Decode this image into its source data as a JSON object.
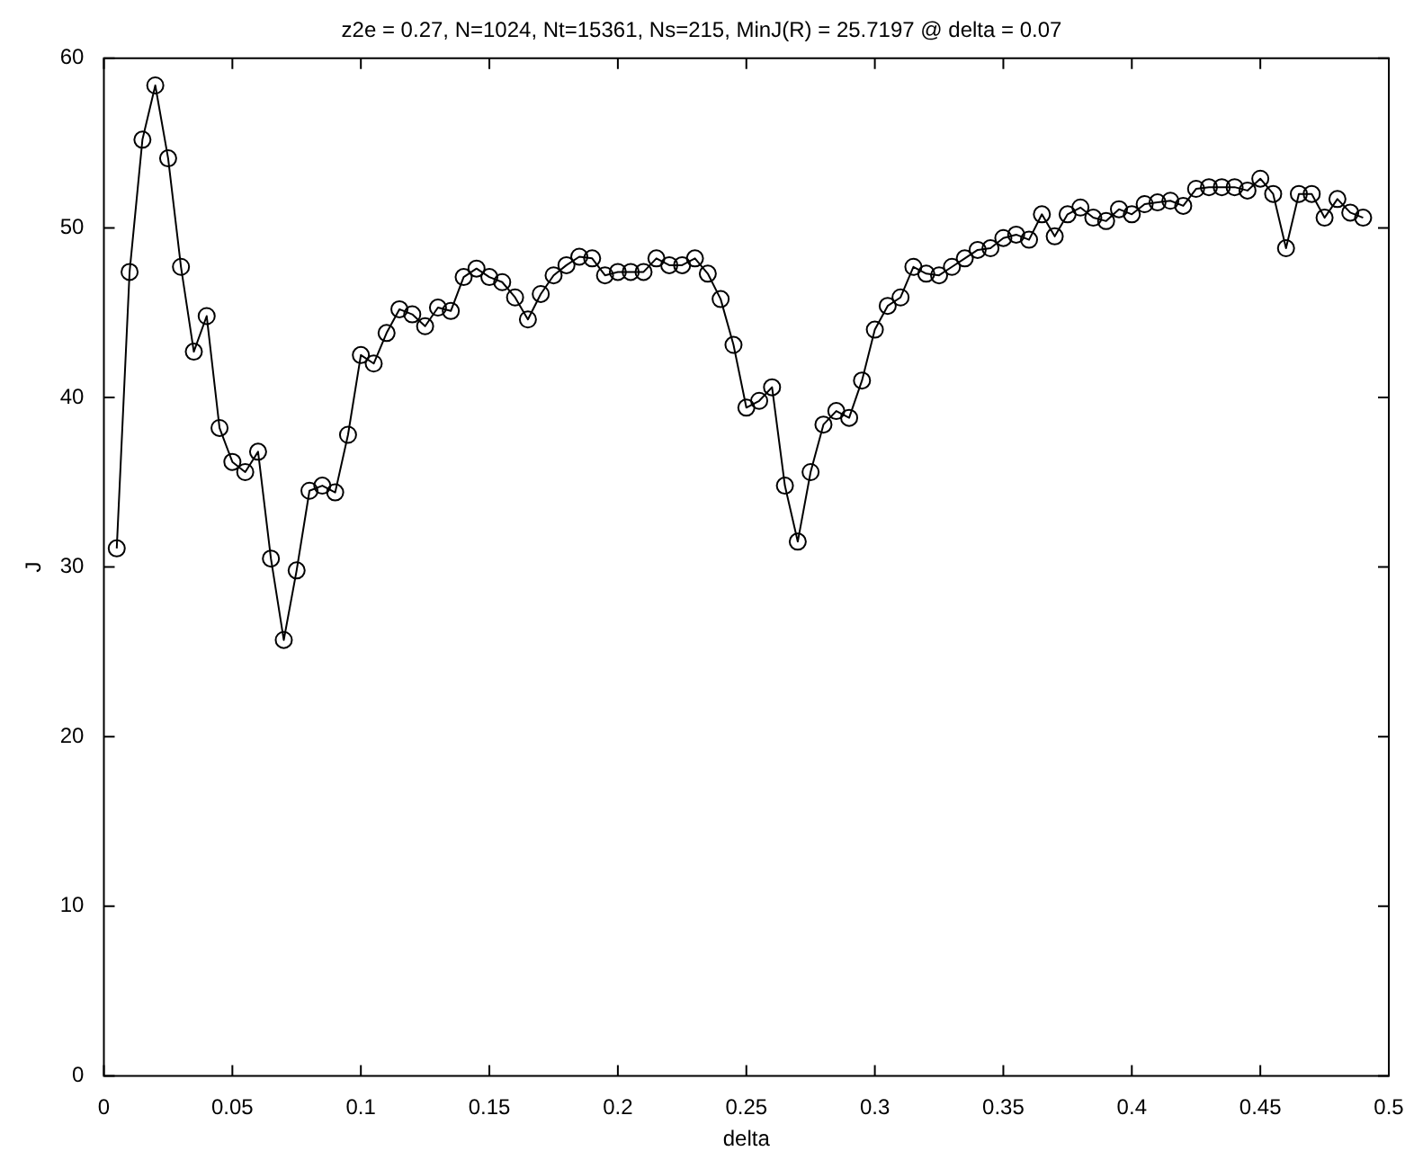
{
  "chart_data": {
    "type": "line",
    "title": "z2e = 0.27, N=1024, Nt=15361, Ns=215, MinJ(R) = 25.7197 @ delta = 0.07",
    "xlabel": "delta",
    "ylabel": "J",
    "x": [
      0.005,
      0.01,
      0.015,
      0.02,
      0.025,
      0.03,
      0.035,
      0.04,
      0.045,
      0.05,
      0.055,
      0.06,
      0.065,
      0.07,
      0.075,
      0.08,
      0.085,
      0.09,
      0.095,
      0.1,
      0.105,
      0.11,
      0.115,
      0.12,
      0.125,
      0.13,
      0.135,
      0.14,
      0.145,
      0.15,
      0.155,
      0.16,
      0.165,
      0.17,
      0.175,
      0.18,
      0.185,
      0.19,
      0.195,
      0.2,
      0.205,
      0.21,
      0.215,
      0.22,
      0.225,
      0.23,
      0.235,
      0.24,
      0.245,
      0.25,
      0.255,
      0.26,
      0.265,
      0.27,
      0.275,
      0.28,
      0.285,
      0.29,
      0.295,
      0.3,
      0.305,
      0.31,
      0.315,
      0.32,
      0.325,
      0.33,
      0.335,
      0.34,
      0.345,
      0.35,
      0.355,
      0.36,
      0.365,
      0.37,
      0.375,
      0.38,
      0.385,
      0.39,
      0.395,
      0.4,
      0.405,
      0.41,
      0.415,
      0.42,
      0.425,
      0.43,
      0.435,
      0.44,
      0.445,
      0.45,
      0.455,
      0.46,
      0.465,
      0.47,
      0.475,
      0.48,
      0.485,
      0.49
    ],
    "series": [
      {
        "color": "#000000",
        "values": [
          31.1,
          47.4,
          55.2,
          58.4,
          54.1,
          47.7,
          42.7,
          44.8,
          38.2,
          36.2,
          35.6,
          36.8,
          30.5,
          25.7,
          29.8,
          34.5,
          34.8,
          34.4,
          37.8,
          42.5,
          42.0,
          43.8,
          45.2,
          44.9,
          44.2,
          45.3,
          45.1,
          47.1,
          47.6,
          47.1,
          46.8,
          45.9,
          44.6,
          46.1,
          47.2,
          47.8,
          48.3,
          48.2,
          47.2,
          47.4,
          47.4,
          47.4,
          48.2,
          47.8,
          47.8,
          48.2,
          47.3,
          45.8,
          43.1,
          39.4,
          39.8,
          40.6,
          34.8,
          31.5,
          35.6,
          38.4,
          39.2,
          38.8,
          41.0,
          44.0,
          45.4,
          45.9,
          47.7,
          47.3,
          47.2,
          47.7,
          48.2,
          48.7,
          48.8,
          49.4,
          49.6,
          49.3,
          50.8,
          49.5,
          50.8,
          51.2,
          50.6,
          50.4,
          51.1,
          50.8,
          51.4,
          51.5,
          51.6,
          51.3,
          52.3,
          52.4,
          52.4,
          52.4,
          52.2,
          52.9,
          52.0,
          48.8,
          52.0,
          52.0,
          50.6,
          51.7,
          50.9,
          50.6
        ]
      }
    ],
    "xlim": [
      0,
      0.5
    ],
    "xticks": [
      0,
      0.05,
      0.1,
      0.15,
      0.2,
      0.25,
      0.3,
      0.35,
      0.4,
      0.45,
      0.5
    ],
    "ylim": [
      0,
      60
    ],
    "yticks": [
      0,
      10,
      20,
      30,
      40,
      50,
      60
    ],
    "marker": "circle",
    "line_style": "solid",
    "legend": false
  }
}
